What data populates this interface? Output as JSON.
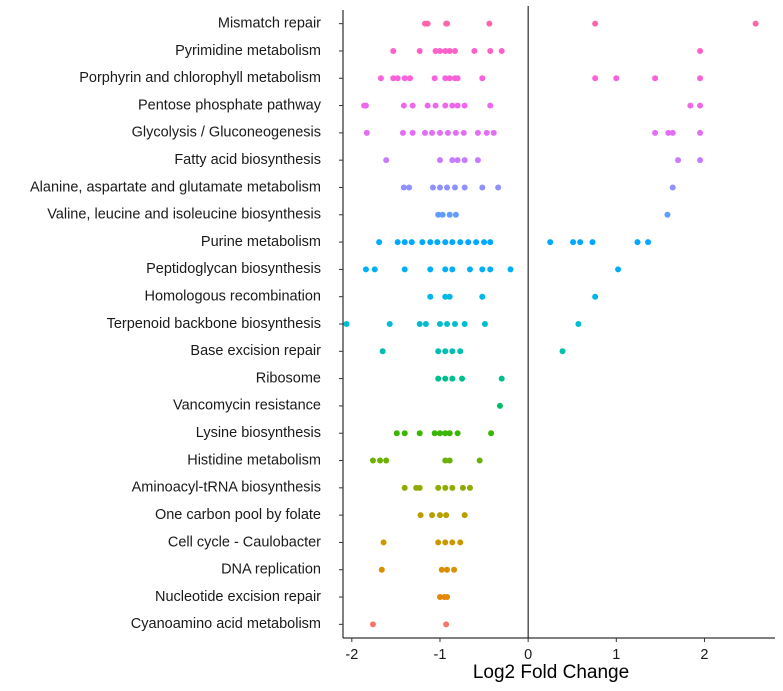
{
  "chart_data": {
    "type": "strip",
    "x_label": "Log2 Fold Change",
    "categories": [
      "Mismatch repair",
      "Pyrimidine metabolism",
      "Porphyrin and chlorophyll metabolism",
      "Pentose phosphate pathway",
      "Glycolysis / Gluconeogenesis",
      "Fatty acid biosynthesis",
      "Alanine, aspartate and glutamate metabolism",
      "Valine, leucine and isoleucine biosynthesis",
      "Purine metabolism",
      "Peptidoglycan biosynthesis",
      "Homologous recombination",
      "Terpenoid backbone biosynthesis",
      "Base excision repair",
      "Ribosome",
      "Vancomycin resistance",
      "Lysine biosynthesis",
      "Histidine metabolism",
      "Aminoacyl-tRNA biosynthesis",
      "One carbon pool by folate",
      "Cell cycle - Caulobacter",
      "DNA replication",
      "Nucleotide excision repair",
      "Cyanoamino acid metabolism"
    ],
    "colors": [
      "#FF65AC",
      "#FF61C9",
      "#FA62DB",
      "#EF67EB",
      "#E36EF6",
      "#C77CFF",
      "#8F91FF",
      "#619CFF",
      "#00A9FF",
      "#00B0F6",
      "#00B8E7",
      "#00BDD0",
      "#00BFB0",
      "#00BF8C",
      "#00BE67",
      "#39B600",
      "#6BB100",
      "#8EAB00",
      "#B79F00",
      "#C99800",
      "#D89000",
      "#E58700",
      "#F8766D"
    ],
    "values": [
      [
        -1.17,
        -1.14,
        -0.93,
        -0.92,
        -0.44,
        0.76,
        2.58
      ],
      [
        -1.53,
        -1.23,
        -1.05,
        -1.0,
        -0.94,
        -0.89,
        -0.83,
        -0.61,
        -0.43,
        -0.3,
        1.95
      ],
      [
        -1.67,
        -1.53,
        -1.48,
        -1.4,
        -1.34,
        -1.06,
        -0.94,
        -0.89,
        -0.83,
        -0.8,
        -0.52,
        0.76,
        1.0,
        1.44,
        1.95
      ],
      [
        -1.86,
        -1.84,
        -1.41,
        -1.31,
        -1.14,
        -1.05,
        -0.94,
        -0.86,
        -0.8,
        -0.72,
        -0.43,
        1.84,
        1.95
      ],
      [
        -1.83,
        -1.42,
        -1.31,
        -1.17,
        -1.09,
        -1.0,
        -0.91,
        -0.82,
        -0.73,
        -0.57,
        -0.47,
        -0.39,
        1.44,
        1.59,
        1.64,
        1.95
      ],
      [
        -1.61,
        -1.0,
        -0.86,
        -0.8,
        -0.72,
        -0.57,
        1.7,
        1.95
      ],
      [
        -1.41,
        -1.35,
        -1.08,
        -1.0,
        -0.92,
        -0.83,
        -0.72,
        -0.52,
        -0.34,
        1.64
      ],
      [
        -1.02,
        -0.97,
        -0.89,
        -0.82,
        1.58
      ],
      [
        -1.69,
        -1.48,
        -1.4,
        -1.32,
        -1.2,
        -1.11,
        -1.03,
        -0.94,
        -0.86,
        -0.77,
        -0.68,
        -0.59,
        -0.5,
        -0.43,
        0.25,
        0.51,
        0.59,
        0.73,
        1.24,
        1.36
      ],
      [
        -1.84,
        -1.74,
        -1.4,
        -1.11,
        -0.94,
        -0.86,
        -0.66,
        -0.52,
        -0.43,
        -0.2,
        1.02
      ],
      [
        -1.11,
        -0.94,
        -0.89,
        -0.52,
        0.76
      ],
      [
        -2.06,
        -1.57,
        -1.23,
        -1.16,
        -1.0,
        -0.92,
        -0.83,
        -0.72,
        -0.49,
        0.57
      ],
      [
        -1.65,
        -1.02,
        -0.94,
        -0.86,
        -0.77,
        0.39
      ],
      [
        -1.02,
        -0.94,
        -0.86,
        -0.75,
        -0.3
      ],
      [
        -0.32
      ],
      [
        -1.49,
        -1.4,
        -1.23,
        -1.06,
        -1.0,
        -0.94,
        -0.89,
        -0.8,
        -0.42
      ],
      [
        -1.76,
        -1.68,
        -1.61,
        -0.94,
        -0.89,
        -0.55
      ],
      [
        -1.4,
        -1.27,
        -1.23,
        -1.02,
        -0.94,
        -0.86,
        -0.74,
        -0.66
      ],
      [
        -1.22,
        -1.09,
        -1.0,
        -0.93,
        -0.72
      ],
      [
        -1.64,
        -1.02,
        -0.94,
        -0.86,
        -0.77
      ],
      [
        -1.66,
        -0.98,
        -0.92,
        -0.84
      ],
      [
        -1.0,
        -0.95,
        -0.92
      ],
      [
        -1.76,
        -0.93
      ]
    ],
    "xlim": [
      -2.1,
      2.8
    ],
    "xticks": [
      -2,
      -1,
      0,
      1,
      2
    ],
    "vline": 0
  }
}
